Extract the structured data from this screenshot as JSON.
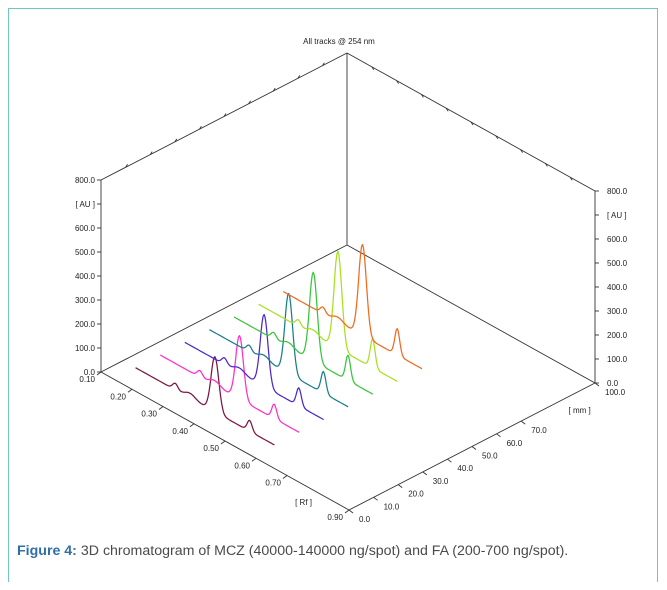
{
  "figure": {
    "caption_label": "Figure 4:",
    "caption_text": " 3D chromatogram of MCZ (40000-140000 ng/spot) and FA (200-700 ng/spot)."
  },
  "chart_data": {
    "type": "line",
    "title": "All tracks @ 254 nm",
    "z_axis_label": "[ AU ]",
    "z_ticks": [
      "800.0",
      "[ AU ]",
      "600.0",
      "500.0",
      "400.0",
      "300.0",
      "200.0",
      "100.0",
      "0.0"
    ],
    "z_ticks_right": [
      "800.0",
      "[ AU ]",
      "600.0",
      "500.0",
      "400.0",
      "300.0",
      "200.0",
      "100.0",
      "0.0"
    ],
    "zlim": [
      0,
      800
    ],
    "rf_axis_label": "[ Rf ]",
    "rf_ticks": [
      "0.10",
      "0.20",
      "0.30",
      "0.40",
      "0.50",
      "0.60",
      "0.70",
      "0.90"
    ],
    "rf_range": [
      0.1,
      0.9
    ],
    "mm_axis_label": "[ mm ]",
    "mm_ticks": [
      "0.0",
      "10.0",
      "20.0",
      "30.0",
      "40.0",
      "50.0",
      "60.0",
      "70.0",
      "100.0"
    ],
    "mm_range": [
      0,
      100
    ],
    "series": [
      {
        "color": "#7a1545",
        "mcz_peak_au": 230,
        "fa_peak_au": 45,
        "baseline_au": 10
      },
      {
        "color": "#ff2fc8",
        "mcz_peak_au": 265,
        "fa_peak_au": 60,
        "baseline_au": 10
      },
      {
        "color": "#4b2ac8",
        "mcz_peak_au": 300,
        "fa_peak_au": 75,
        "baseline_au": 10
      },
      {
        "color": "#1a7d8a",
        "mcz_peak_au": 335,
        "fa_peak_au": 90,
        "baseline_au": 10
      },
      {
        "color": "#37c43a",
        "mcz_peak_au": 370,
        "fa_peak_au": 105,
        "baseline_au": 10
      },
      {
        "color": "#a8e020",
        "mcz_peak_au": 405,
        "fa_peak_au": 120,
        "baseline_au": 10
      },
      {
        "color": "#f06a1e",
        "mcz_peak_au": 380,
        "fa_peak_au": 110,
        "baseline_au": 10
      }
    ],
    "grid": false,
    "legend": "none"
  }
}
